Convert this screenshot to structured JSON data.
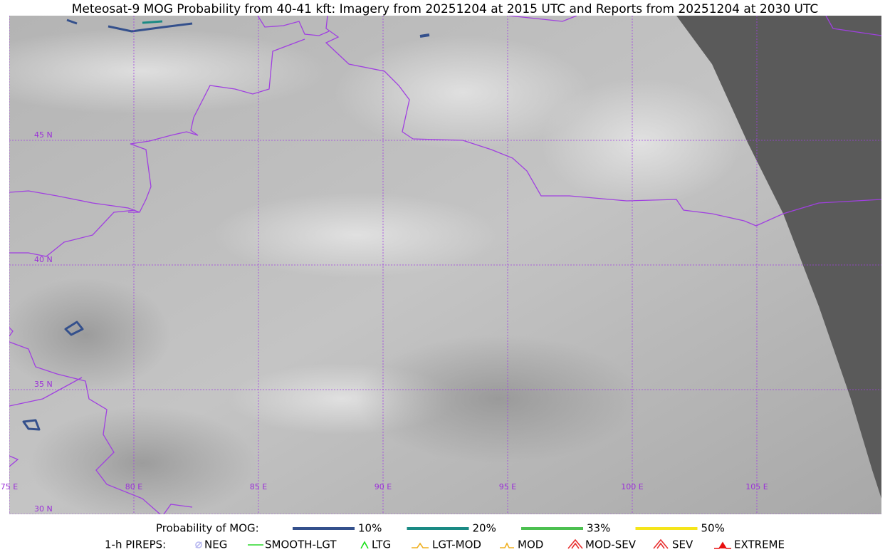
{
  "map": {
    "title": "Meteosat-9 MOG Probability from 40-41 kft: Imagery from 20251204 at 2015 UTC and Reports from 20251204 at 2030 UTC",
    "xlim": [
      75,
      110
    ],
    "ylim": [
      30,
      50
    ],
    "lon_ticks": [
      {
        "value": 75,
        "label": "75 E"
      },
      {
        "value": 80,
        "label": "80 E"
      },
      {
        "value": 85,
        "label": "85 E"
      },
      {
        "value": 90,
        "label": "90 E"
      },
      {
        "value": 95,
        "label": "95 E"
      },
      {
        "value": 100,
        "label": "100 E"
      },
      {
        "value": 105,
        "label": "105 E"
      }
    ],
    "lat_ticks": [
      {
        "value": 30,
        "label": "30 N"
      },
      {
        "value": 35,
        "label": "35 N"
      },
      {
        "value": 40,
        "label": "40 N"
      },
      {
        "value": 45,
        "label": "45 N"
      }
    ]
  },
  "mog_legend": {
    "title": "Probability of MOG:",
    "items": [
      {
        "label": "10%",
        "color": "#34508c"
      },
      {
        "label": "20%",
        "color": "#1a8a84"
      },
      {
        "label": "33%",
        "color": "#4cc050"
      },
      {
        "label": "50%",
        "color": "#f5e51a"
      }
    ]
  },
  "pirep_legend": {
    "title": "1-h PIREPS:",
    "items": [
      {
        "label": "NEG",
        "color": "#b8b8f0"
      },
      {
        "label": "SMOOTH-LGT",
        "color": "#2ad82a"
      },
      {
        "label": "LTG",
        "color": "#1ae01a"
      },
      {
        "label": "LGT-MOD",
        "color": "#f0b020"
      },
      {
        "label": "MOD",
        "color": "#f0b020"
      },
      {
        "label": "MOD-SEV",
        "color": "#e83030"
      },
      {
        "label": "SEV",
        "color": "#e83030"
      },
      {
        "label": "EXTREME",
        "color": "#e81010"
      }
    ]
  }
}
